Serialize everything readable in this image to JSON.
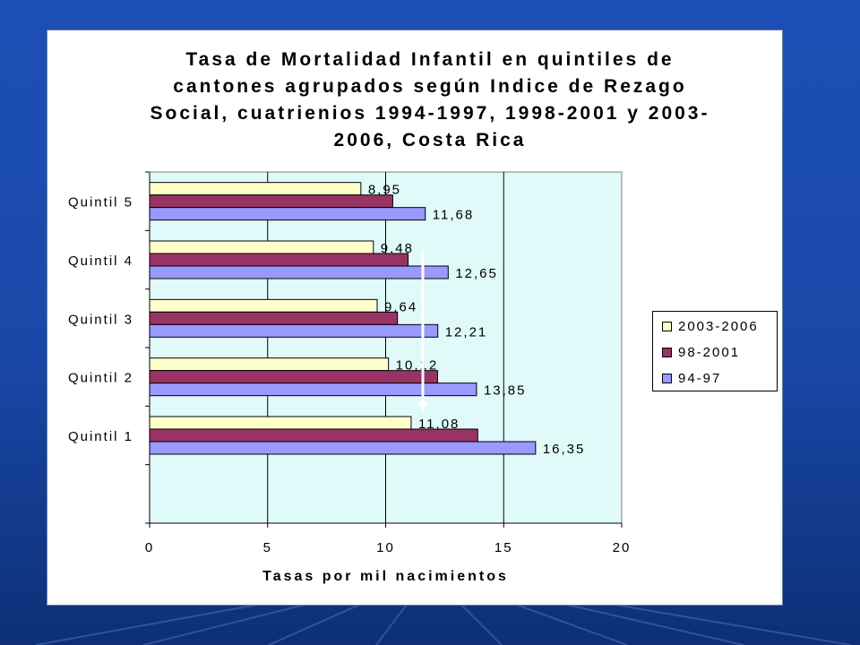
{
  "chart_data": {
    "type": "bar",
    "orientation": "horizontal",
    "title_lines": [
      "Tasa de Mortalidad Infantil en quintiles de",
      "cantones agrupados según Indice de Rezago",
      "Social, cuatrienios 1994-1997, 1998-2001 y 2003-",
      "2006, Costa Rica"
    ],
    "xlabel": "Tasas por mil nacimientos",
    "ylabel": "",
    "xlim": [
      0,
      20
    ],
    "x_ticks": [
      "0",
      "5",
      "10",
      "15",
      "20"
    ],
    "categories": [
      "Quintil 5",
      "Quintil 4",
      "Quintil 3",
      "Quintil 2",
      "Quintil 1"
    ],
    "series": [
      {
        "name": "2003-2006",
        "color": "#ffffcc",
        "values": [
          8.95,
          9.48,
          9.64,
          10.12,
          11.08
        ],
        "labels": [
          "8,95",
          "9,48",
          "9,64",
          "10,12",
          "11,08"
        ]
      },
      {
        "name": "98-2001",
        "color": "#993366",
        "values": [
          10.3,
          10.95,
          10.5,
          12.2,
          13.9
        ],
        "labels": [
          "",
          "",
          "",
          "",
          ""
        ]
      },
      {
        "name": "94-97",
        "color": "#9999ff",
        "values": [
          11.68,
          12.65,
          12.21,
          13.85,
          16.35
        ],
        "labels": [
          "11,68",
          "12,65",
          "12,21",
          "13,85",
          "16,35"
        ]
      }
    ],
    "legend_order": [
      "2003-2006",
      "98-2001",
      "94-97"
    ],
    "legend_position": "right",
    "grid": "vertical major gridlines",
    "plot_background": "#e0fafa"
  }
}
